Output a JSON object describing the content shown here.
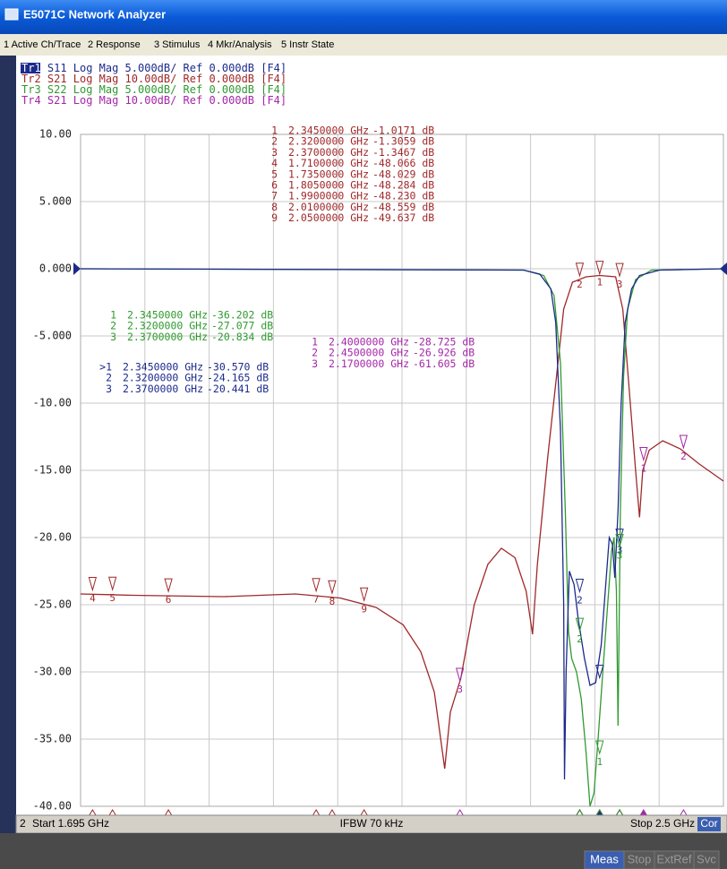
{
  "window": {
    "title": "E5071C Network Analyzer"
  },
  "menu": [
    "1 Active Ch/Trace",
    "2 Response",
    "3 Stimulus",
    "4 Mkr/Analysis",
    "5 Instr State"
  ],
  "traces": [
    {
      "name": "Tr1",
      "param": "S11",
      "format": "Log Mag",
      "scale": "5.000dB/",
      "ref": "Ref 0.000dB",
      "tag": "[F4]",
      "color": "#1c2a8c",
      "markers": [
        [
          ">1",
          "2.3450000 GHz",
          "-30.570 dB"
        ],
        [
          "2",
          "2.3200000 GHz",
          "-24.165 dB"
        ],
        [
          "3",
          "2.3700000 GHz",
          "-20.441 dB"
        ]
      ]
    },
    {
      "name": "Tr2",
      "param": "S21",
      "format": "Log Mag",
      "scale": "10.00dB/",
      "ref": "Ref 0.000dB",
      "tag": "[F4]",
      "color": "#a0282a",
      "markers": [
        [
          "1",
          "2.3450000 GHz",
          "-1.0171 dB"
        ],
        [
          "2",
          "2.3200000 GHz",
          "-1.3059 dB"
        ],
        [
          "3",
          "2.3700000 GHz",
          "-1.3467 dB"
        ],
        [
          "4",
          "1.7100000 GHz",
          "-48.066 dB"
        ],
        [
          "5",
          "1.7350000 GHz",
          "-48.029 dB"
        ],
        [
          "6",
          "1.8050000 GHz",
          "-48.284 dB"
        ],
        [
          "7",
          "1.9900000 GHz",
          "-48.230 dB"
        ],
        [
          "8",
          "2.0100000 GHz",
          "-48.559 dB"
        ],
        [
          "9",
          "2.0500000 GHz",
          "-49.637 dB"
        ]
      ]
    },
    {
      "name": "Tr3",
      "param": "S22",
      "format": "Log Mag",
      "scale": "5.000dB/",
      "ref": "Ref 0.000dB",
      "tag": "[F4]",
      "color": "#2f9a2f",
      "markers": [
        [
          "1",
          "2.3450000 GHz",
          "-36.202 dB"
        ],
        [
          "2",
          "2.3200000 GHz",
          "-27.077 dB"
        ],
        [
          "3",
          "2.3700000 GHz",
          "-20.834 dB"
        ]
      ]
    },
    {
      "name": "Tr4",
      "param": "S21",
      "format": "Log Mag",
      "scale": "10.00dB/",
      "ref": "Ref 0.000dB",
      "tag": "[F4]",
      "color": "#a426a8",
      "markers": [
        [
          "1",
          "2.4000000 GHz",
          "-28.725 dB"
        ],
        [
          "2",
          "2.4500000 GHz",
          "-26.926 dB"
        ],
        [
          "3",
          "2.1700000 GHz",
          "-61.605 dB"
        ]
      ]
    }
  ],
  "chart_data": {
    "type": "line",
    "xlim": [
      1.695,
      2.5
    ],
    "ylim": [
      -40,
      10
    ],
    "yticks": [
      {
        "value": 10,
        "label": "10.00"
      },
      {
        "value": 5,
        "label": "5.000"
      },
      {
        "value": 0,
        "label": "0.000"
      },
      {
        "value": -5,
        "label": "-5.000"
      },
      {
        "value": -10,
        "label": "-10.00"
      },
      {
        "value": -15,
        "label": "-15.00"
      },
      {
        "value": -20,
        "label": "-20.00"
      },
      {
        "value": -25,
        "label": "-25.00"
      },
      {
        "value": -30,
        "label": "-30.00"
      },
      {
        "value": -35,
        "label": "-35.00"
      },
      {
        "value": -40,
        "label": "-40.00"
      }
    ],
    "grid": true,
    "series": [
      {
        "color": "#a0282a",
        "x": [
          1.695,
          1.762,
          1.874,
          1.964,
          2.02,
          2.065,
          2.099,
          2.121,
          2.138,
          2.151,
          2.158,
          2.171,
          2.188,
          2.205,
          2.222,
          2.239,
          2.253,
          2.261,
          2.267,
          2.28,
          2.291,
          2.3,
          2.311,
          2.328,
          2.345,
          2.365,
          2.374,
          2.382,
          2.39,
          2.395,
          2.399,
          2.407,
          2.424,
          2.446,
          2.469,
          2.5
        ],
        "values": [
          -24.2,
          -24.3,
          -24.4,
          -24.2,
          -24.5,
          -25.2,
          -26.5,
          -28.5,
          -31.5,
          -37.2,
          -33,
          -30.5,
          -25,
          -22,
          -20.8,
          -21.5,
          -24,
          -27.2,
          -22,
          -14,
          -8,
          -3,
          -1,
          -0.6,
          -0.5,
          -0.6,
          -3,
          -9,
          -15,
          -18.5,
          -15,
          -13.5,
          -12.8,
          -13.4,
          -14.5,
          -15.8
        ]
      },
      {
        "color": "#2f9a2f",
        "x": [
          1.695,
          2.25,
          2.275,
          2.288,
          2.296,
          2.302,
          2.306,
          2.31,
          2.316,
          2.322,
          2.328,
          2.333,
          2.338,
          2.343,
          2.349,
          2.355,
          2.36,
          2.363,
          2.366,
          2.368,
          2.371,
          2.375,
          2.38,
          2.39,
          2.41,
          2.5
        ],
        "values": [
          0,
          -0.1,
          -0.5,
          -2,
          -7,
          -18,
          -27,
          -29,
          -30,
          -32,
          -36,
          -40,
          -39,
          -35,
          -30,
          -25,
          -21,
          -20,
          -24,
          -34,
          -18,
          -8,
          -3,
          -0.8,
          -0.1,
          0
        ]
      },
      {
        "color": "#1c2a8c",
        "x": [
          1.695,
          2.25,
          2.27,
          2.284,
          2.29,
          2.296,
          2.3,
          2.301,
          2.303,
          2.307,
          2.313,
          2.318,
          2.326,
          2.333,
          2.34,
          2.347,
          2.352,
          2.357,
          2.361,
          2.364,
          2.368,
          2.372,
          2.377,
          2.385,
          2.395,
          2.42,
          2.5
        ],
        "values": [
          0,
          -0.1,
          -0.4,
          -1.5,
          -4,
          -12,
          -25,
          -38,
          -30,
          -22.5,
          -23.5,
          -26,
          -29,
          -31,
          -30.8,
          -28,
          -24,
          -20,
          -20.5,
          -23,
          -18,
          -10,
          -4,
          -1.5,
          -0.5,
          -0.1,
          0
        ]
      }
    ]
  },
  "status": {
    "channel": "2",
    "start": "Start 1.695 GHz",
    "ifbw": "IFBW 70 kHz",
    "stop": "Stop 2.5 GHz",
    "cor": "Cor"
  },
  "softkeys": [
    "Meas",
    "Stop",
    "ExtRef",
    "Svc"
  ]
}
